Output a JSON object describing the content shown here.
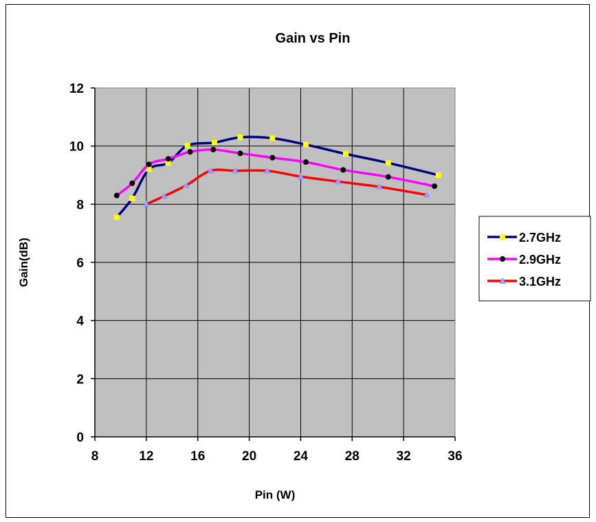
{
  "chart_data": {
    "type": "line",
    "title": "Gain vs Pin",
    "xlabel": "Pin (W)",
    "ylabel": "Gain(dB)",
    "xlim": [
      8,
      36
    ],
    "ylim": [
      0,
      12
    ],
    "x_ticks": [
      8,
      12,
      16,
      20,
      24,
      28,
      32,
      36
    ],
    "y_ticks": [
      0,
      2,
      4,
      6,
      8,
      10,
      12
    ],
    "grid": true,
    "plot_background": "#c0c0c0",
    "legend_position": "right",
    "series": [
      {
        "name": "2.7GHz",
        "line_color": "#000080",
        "marker": "square",
        "marker_color": "#ffff00",
        "points": [
          [
            9.7,
            7.55
          ],
          [
            10.9,
            8.2
          ],
          [
            12.2,
            9.2
          ],
          [
            13.7,
            9.42
          ],
          [
            15.2,
            10.02
          ],
          [
            17.3,
            10.12
          ],
          [
            19.3,
            10.3
          ],
          [
            21.8,
            10.27
          ],
          [
            24.4,
            10.05
          ],
          [
            27.5,
            9.73
          ],
          [
            30.8,
            9.42
          ],
          [
            34.7,
            9.0
          ]
        ]
      },
      {
        "name": "2.9GHz",
        "line_color": "#ff00ff",
        "marker": "circle",
        "marker_color": "#000000",
        "points": [
          [
            9.7,
            8.3
          ],
          [
            10.9,
            8.72
          ],
          [
            12.2,
            9.37
          ],
          [
            13.7,
            9.56
          ],
          [
            15.4,
            9.8
          ],
          [
            17.2,
            9.88
          ],
          [
            19.3,
            9.75
          ],
          [
            21.8,
            9.6
          ],
          [
            24.4,
            9.45
          ],
          [
            27.3,
            9.18
          ],
          [
            30.8,
            8.94
          ],
          [
            34.4,
            8.62
          ]
        ]
      },
      {
        "name": "3.1GHz",
        "line_color": "#ff0000",
        "marker": "triangle",
        "marker_color": "#9999ff",
        "points": [
          [
            12.0,
            8.0
          ],
          [
            13.4,
            8.28
          ],
          [
            15.1,
            8.65
          ],
          [
            17.0,
            9.15
          ],
          [
            18.9,
            9.15
          ],
          [
            21.4,
            9.15
          ],
          [
            24.0,
            8.95
          ],
          [
            26.9,
            8.78
          ],
          [
            30.1,
            8.6
          ],
          [
            33.8,
            8.32
          ]
        ]
      }
    ]
  }
}
